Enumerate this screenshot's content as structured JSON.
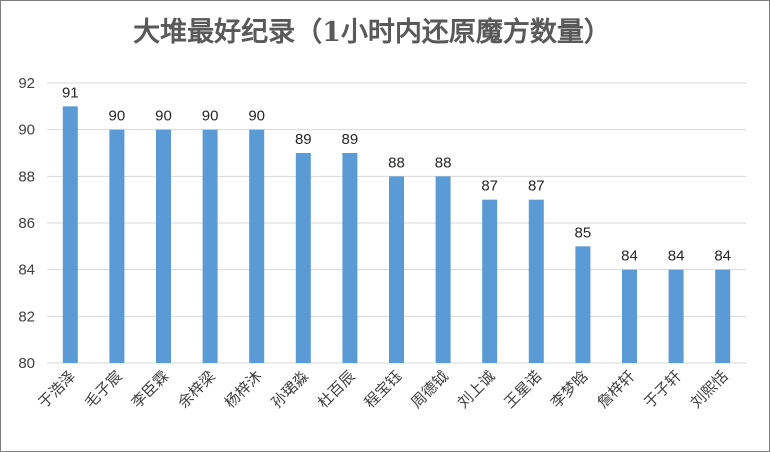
{
  "chart_data": {
    "type": "bar",
    "title": "大堆最好纪录（1小时内还原魔方数量）",
    "categories": [
      "于浩泽",
      "毛子宸",
      "李臣霖",
      "余梓梁",
      "杨梓沐",
      "孙珺淼",
      "杜百辰",
      "程宝钰",
      "周德钺",
      "刘上诚",
      "王星诺",
      "李梦晗",
      "詹梓轩",
      "于子轩",
      "刘熙恬"
    ],
    "values": [
      91,
      90,
      90,
      90,
      90,
      89,
      89,
      88,
      88,
      87,
      87,
      85,
      84,
      84,
      84
    ],
    "ylim": [
      80,
      92
    ],
    "yticks": [
      80,
      82,
      84,
      86,
      88,
      90,
      92
    ],
    "xlabel": "",
    "ylabel": "",
    "grid": true,
    "legend": "none",
    "bar_color": "#5b9bd5"
  }
}
